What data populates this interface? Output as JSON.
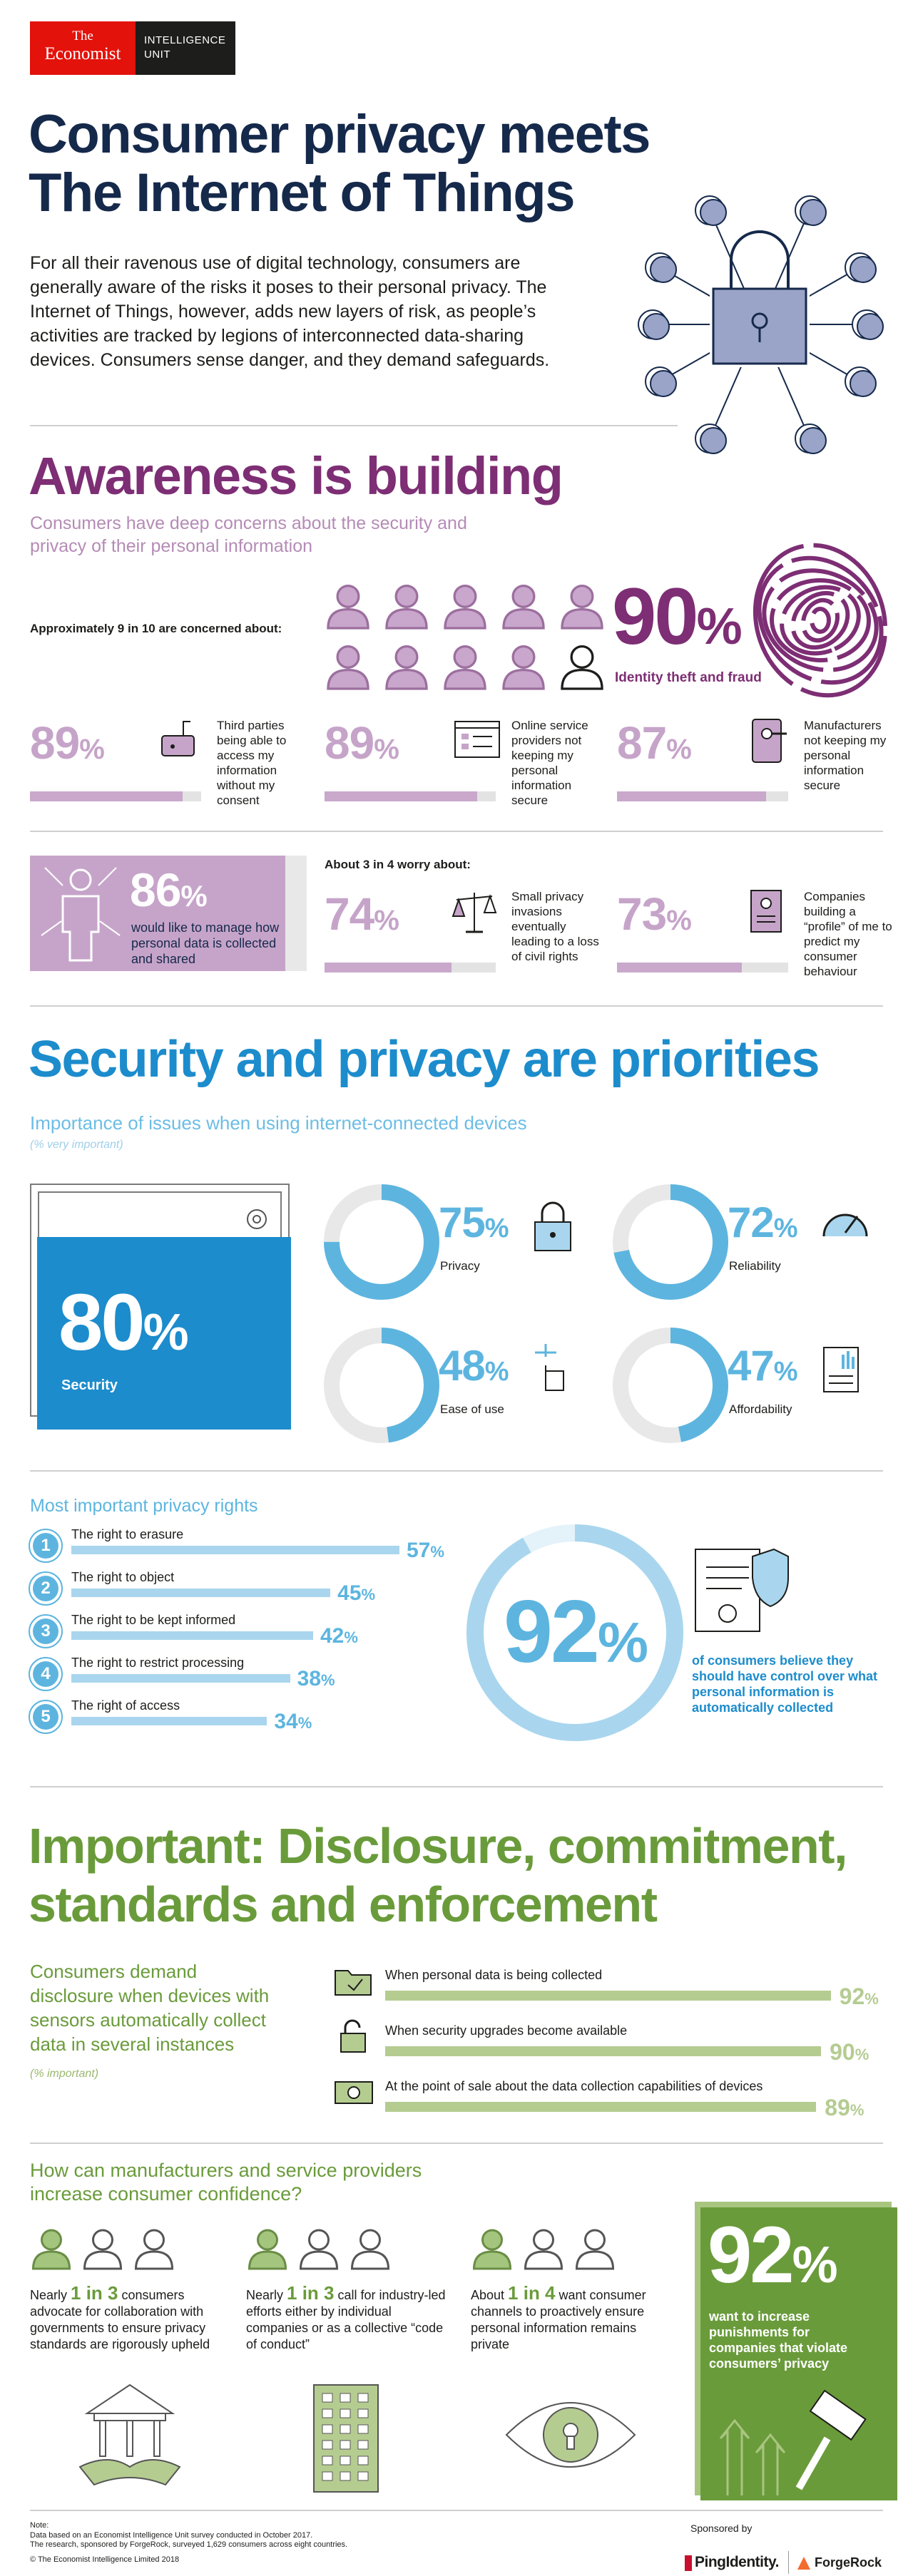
{
  "header": {
    "brand": [
      "The",
      "Economist"
    ],
    "unit": [
      "INTELLIGENCE",
      "UNIT"
    ]
  },
  "title": [
    "Consumer privacy meets",
    "The Internet of Things"
  ],
  "intro": "For all their ravenous use of digital technology, consumers are generally aware of the risks it poses to their personal privacy. The Internet of Things, however, adds new layers of risk, as people’s activities are tracked by legions of interconnected data-sharing devices. Consumers sense danger, and they demand safeguards.",
  "awareness": {
    "title": "Awareness is building",
    "subtitle": "Consumers have deep concerns about the security and privacy of their personal information",
    "concerned_label": "Approximately 9 in 10 are concerned about:",
    "headline": {
      "value": 90,
      "unit": "%",
      "label": "Identity theft and fraud"
    },
    "concerns": [
      {
        "value": 89,
        "unit": "%",
        "text": "Third parties being able to access my information without my consent"
      },
      {
        "value": 89,
        "unit": "%",
        "text": "Online service providers not keeping my personal information secure"
      },
      {
        "value": 87,
        "unit": "%",
        "text": "Manufacturers not keeping my personal information secure"
      }
    ],
    "manage": {
      "value": 86,
      "unit": "%",
      "text": "would like to manage how personal data is collected and shared"
    },
    "worry_label": "About 3 in 4 worry about:",
    "worries": [
      {
        "value": 74,
        "unit": "%",
        "text": "Small privacy invasions eventually leading to a loss of civil rights"
      },
      {
        "value": 73,
        "unit": "%",
        "text": "Companies building a “profile” of me to predict my consumer behaviour"
      }
    ]
  },
  "security": {
    "title": "Security and privacy are priorities",
    "subtitle": "Importance of issues when using internet-connected devices",
    "note": "(% very important)",
    "main": {
      "value": 80,
      "unit": "%",
      "label": "Security"
    },
    "items": [
      {
        "value": 75,
        "unit": "%",
        "label": "Privacy"
      },
      {
        "value": 72,
        "unit": "%",
        "label": "Reliability"
      },
      {
        "value": 48,
        "unit": "%",
        "label": "Ease of use"
      },
      {
        "value": 47,
        "unit": "%",
        "label": "Affordability"
      }
    ],
    "rights_title": "Most important privacy rights",
    "rights": [
      {
        "number": 1,
        "label": "The right to erasure",
        "value": 57,
        "unit": "%"
      },
      {
        "number": 2,
        "label": "The right to object",
        "value": 45,
        "unit": "%"
      },
      {
        "number": 3,
        "label": "The right to be kept informed",
        "value": 42,
        "unit": "%"
      },
      {
        "number": 4,
        "label": "The right to restrict processing",
        "value": 38,
        "unit": "%"
      },
      {
        "number": 5,
        "label": "The right of access",
        "value": 34,
        "unit": "%"
      }
    ],
    "control": {
      "value": 92,
      "unit": "%",
      "text": "of consumers believe they should have control over what personal information is automatically collected"
    }
  },
  "disclosure": {
    "title": [
      "Important: Disclosure, commitment,",
      "standards and enforcement"
    ],
    "intro": "Consumers demand disclosure when devices with sensors automatically collect data in several instances",
    "note": "(% important)",
    "items": [
      {
        "label": "When personal data is being collected",
        "value": 92,
        "unit": "%"
      },
      {
        "label": "When security upgrades become available",
        "value": 90,
        "unit": "%"
      },
      {
        "label": "At the point of sale about the data collection capabilities of devices",
        "value": 89,
        "unit": "%"
      }
    ]
  },
  "confidence": {
    "title": "How can manufacturers and service providers increase consumer confidence?",
    "items": [
      {
        "pre": "Nearly ",
        "highlight": "1 in 3",
        "post": " consumers advocate for collaboration with governments to ensure privacy standards are rigorously upheld"
      },
      {
        "pre": "Nearly ",
        "highlight": "1 in 3",
        "post": " call for industry-led efforts either by individual companies or as a collective “code of conduct”"
      },
      {
        "pre": "About ",
        "highlight": "1 in 4",
        "post": " want consumer channels to proactively ensure personal information remains private"
      }
    ],
    "headline": {
      "value": 92,
      "unit": "%",
      "text": "want to increase punishments for companies that violate consumers’ privacy"
    }
  },
  "footer": {
    "note_label": "Note:",
    "notes": [
      "Data based on an Economist Intelligence Unit survey conducted in October 2017.",
      "The research, sponsored by ForgeRock, surveyed 1,629 consumers across eight countries."
    ],
    "copyright": "© The Economist Intelligence Limited 2018",
    "sponsored": "Sponsored by",
    "sponsors": [
      "PingIdentity.",
      "ForgeRock"
    ]
  }
}
